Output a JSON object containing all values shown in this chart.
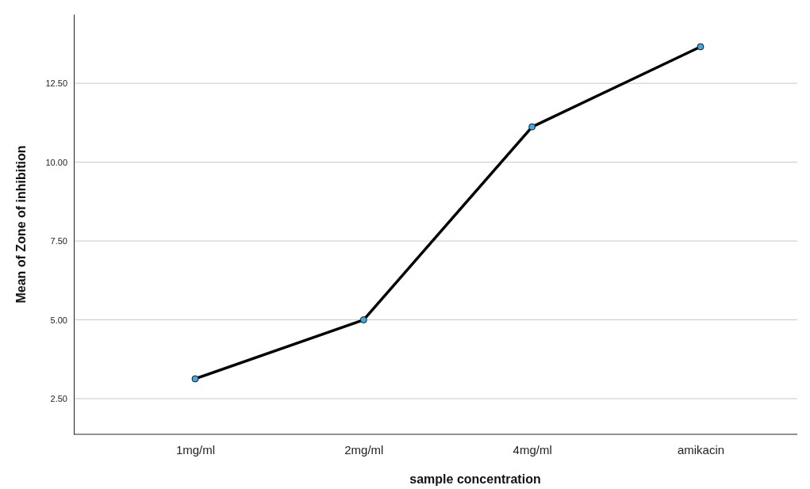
{
  "chart_data": {
    "type": "line",
    "xlabel": "sample concentration",
    "ylabel": "Mean of Zone  of inhibition",
    "categories": [
      "1mg/ml",
      "2mg/ml",
      "4mg/ml",
      "amikacin"
    ],
    "series": [
      {
        "color": "#000000",
        "values": [
          3.13,
          5.0,
          11.12,
          13.66
        ]
      }
    ],
    "ylim": [
      1.37,
      14.69
    ],
    "yticks": [
      {
        "value": 2.5,
        "label": "2.50"
      },
      {
        "value": 5,
        "label": "5.00"
      },
      {
        "value": 7.5,
        "label": "7.50"
      },
      {
        "value": 10,
        "label": "10.00"
      },
      {
        "value": 12.5,
        "label": "12.50"
      }
    ],
    "grid": "y",
    "marker": "circle",
    "line_style": "solid"
  }
}
